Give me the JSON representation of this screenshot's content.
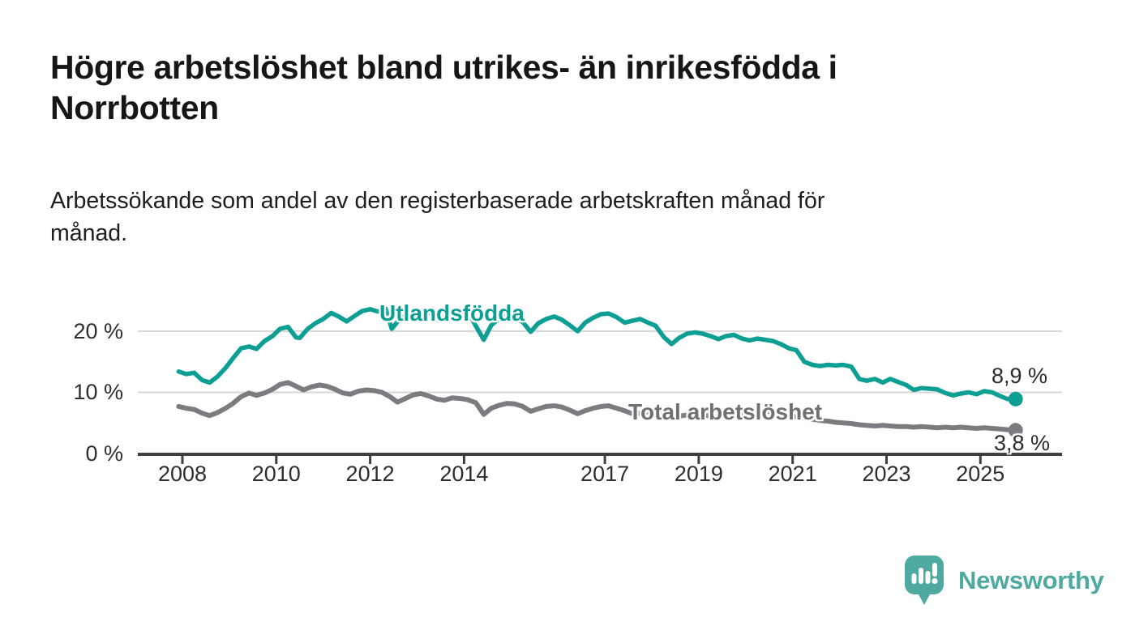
{
  "header": {
    "title": "Högre arbetslöshet bland utrikes- än inrikesfödda i Norrbotten",
    "title_lines": [
      "Högre arbetslöshet bland utrikes- än inrikesfödda i",
      "Norrbotten"
    ],
    "subtitle": "Arbetssökande som andel av den registerbaserade arbetskraften månad för månad.",
    "subtitle_lines": [
      "Arbetssökande som andel av den registerbaserade arbetskraften månad för",
      "månad."
    ]
  },
  "colors": {
    "teal": "#0d9f94",
    "gray": "#7b7b80",
    "grid": "#d7d7d7",
    "axis": "#3f3f3f",
    "logo_teal": "#4ea9a0"
  },
  "chart_data": {
    "type": "line",
    "title": "Högre arbetslöshet bland utrikes- än inrikesfödda i Norrbotten",
    "subtitle": "Arbetssökande som andel av den registerbaserade arbetskraften månad för månad.",
    "x_unit": "year (monthly observations)",
    "xlim": [
      2007.9,
      2026.5
    ],
    "ylim": [
      0,
      25
    ],
    "grid": "horizontal only",
    "legend_position": "inline labels at line",
    "grid_values": [
      10,
      20
    ],
    "y_ticks": [
      {
        "label": "0 %",
        "value": 0
      },
      {
        "label": "10 %",
        "value": 10
      },
      {
        "label": "20 %",
        "value": 20
      }
    ],
    "x_ticks": [
      {
        "label": "2008",
        "value": 2008
      },
      {
        "label": "2010",
        "value": 2010
      },
      {
        "label": "2012",
        "value": 2012
      },
      {
        "label": "2014",
        "value": 2014
      },
      {
        "label": "2017",
        "value": 2017
      },
      {
        "label": "2019",
        "value": 2019
      },
      {
        "label": "2021",
        "value": 2021
      },
      {
        "label": "2023",
        "value": 2023
      },
      {
        "label": "2025",
        "value": 2025
      }
    ],
    "series": [
      {
        "name": "Utlandsfödda",
        "color": "#0d9f94",
        "end_label": "8,9 %",
        "end_value": 8.9,
        "points": [
          [
            2007.92,
            13.4
          ],
          [
            2008.08,
            13.0
          ],
          [
            2008.25,
            13.2
          ],
          [
            2008.42,
            12.0
          ],
          [
            2008.58,
            11.6
          ],
          [
            2008.75,
            12.6
          ],
          [
            2008.92,
            14.0
          ],
          [
            2009.08,
            15.6
          ],
          [
            2009.25,
            17.2
          ],
          [
            2009.42,
            17.5
          ],
          [
            2009.58,
            17.1
          ],
          [
            2009.75,
            18.4
          ],
          [
            2009.92,
            19.2
          ],
          [
            2010.08,
            20.4
          ],
          [
            2010.25,
            20.7
          ],
          [
            2010.42,
            19.0
          ],
          [
            2010.5,
            18.9
          ],
          [
            2010.67,
            20.4
          ],
          [
            2010.83,
            21.3
          ],
          [
            2011.0,
            22.0
          ],
          [
            2011.17,
            23.0
          ],
          [
            2011.33,
            22.4
          ],
          [
            2011.5,
            21.6
          ],
          [
            2011.67,
            22.5
          ],
          [
            2011.83,
            23.3
          ],
          [
            2012.0,
            23.6
          ],
          [
            2012.17,
            23.2
          ],
          [
            2012.33,
            23.7
          ],
          [
            2012.46,
            20.4
          ],
          [
            2012.63,
            22.0
          ],
          [
            2012.79,
            22.7
          ],
          [
            2012.96,
            23.0
          ],
          [
            2013.13,
            23.4
          ],
          [
            2013.29,
            22.9
          ],
          [
            2013.46,
            21.8
          ],
          [
            2013.63,
            22.5
          ],
          [
            2013.79,
            23.0
          ],
          [
            2013.96,
            23.3
          ],
          [
            2014.13,
            22.5
          ],
          [
            2014.42,
            18.6
          ],
          [
            2014.58,
            21.0
          ],
          [
            2014.75,
            22.1
          ],
          [
            2014.92,
            22.4
          ],
          [
            2015.08,
            22.2
          ],
          [
            2015.25,
            21.5
          ],
          [
            2015.42,
            19.9
          ],
          [
            2015.58,
            21.3
          ],
          [
            2015.75,
            22.0
          ],
          [
            2015.92,
            22.4
          ],
          [
            2016.08,
            21.9
          ],
          [
            2016.25,
            21.0
          ],
          [
            2016.42,
            20.0
          ],
          [
            2016.58,
            21.4
          ],
          [
            2016.75,
            22.2
          ],
          [
            2016.92,
            22.8
          ],
          [
            2017.08,
            22.9
          ],
          [
            2017.25,
            22.3
          ],
          [
            2017.42,
            21.4
          ],
          [
            2017.58,
            21.7
          ],
          [
            2017.75,
            22.0
          ],
          [
            2017.92,
            21.4
          ],
          [
            2018.08,
            20.9
          ],
          [
            2018.25,
            19.1
          ],
          [
            2018.42,
            17.9
          ],
          [
            2018.58,
            18.9
          ],
          [
            2018.75,
            19.6
          ],
          [
            2018.92,
            19.8
          ],
          [
            2019.08,
            19.6
          ],
          [
            2019.25,
            19.2
          ],
          [
            2019.42,
            18.7
          ],
          [
            2019.58,
            19.2
          ],
          [
            2019.75,
            19.4
          ],
          [
            2019.92,
            18.8
          ],
          [
            2020.08,
            18.5
          ],
          [
            2020.25,
            18.8
          ],
          [
            2020.42,
            18.6
          ],
          [
            2020.58,
            18.4
          ],
          [
            2020.75,
            17.9
          ],
          [
            2020.92,
            17.2
          ],
          [
            2021.08,
            16.9
          ],
          [
            2021.25,
            15.0
          ],
          [
            2021.42,
            14.5
          ],
          [
            2021.58,
            14.3
          ],
          [
            2021.75,
            14.5
          ],
          [
            2021.92,
            14.4
          ],
          [
            2022.08,
            14.5
          ],
          [
            2022.25,
            14.2
          ],
          [
            2022.42,
            12.2
          ],
          [
            2022.58,
            11.9
          ],
          [
            2022.75,
            12.2
          ],
          [
            2022.92,
            11.6
          ],
          [
            2023.08,
            12.2
          ],
          [
            2023.25,
            11.7
          ],
          [
            2023.42,
            11.2
          ],
          [
            2023.58,
            10.4
          ],
          [
            2023.75,
            10.7
          ],
          [
            2023.92,
            10.6
          ],
          [
            2024.08,
            10.5
          ],
          [
            2024.25,
            9.9
          ],
          [
            2024.42,
            9.5
          ],
          [
            2024.58,
            9.8
          ],
          [
            2024.75,
            10.0
          ],
          [
            2024.92,
            9.7
          ],
          [
            2025.08,
            10.2
          ],
          [
            2025.25,
            10.0
          ],
          [
            2025.42,
            9.4
          ],
          [
            2025.58,
            8.9
          ],
          [
            2025.75,
            8.9
          ]
        ]
      },
      {
        "name": "Total arbetslöshet",
        "color": "#7b7b80",
        "end_label": "3,8 %",
        "end_value": 3.8,
        "points": [
          [
            2007.92,
            7.7
          ],
          [
            2008.08,
            7.4
          ],
          [
            2008.25,
            7.2
          ],
          [
            2008.42,
            6.6
          ],
          [
            2008.58,
            6.2
          ],
          [
            2008.75,
            6.7
          ],
          [
            2008.92,
            7.4
          ],
          [
            2009.08,
            8.2
          ],
          [
            2009.25,
            9.3
          ],
          [
            2009.42,
            9.9
          ],
          [
            2009.58,
            9.5
          ],
          [
            2009.75,
            9.9
          ],
          [
            2009.92,
            10.5
          ],
          [
            2010.08,
            11.3
          ],
          [
            2010.25,
            11.6
          ],
          [
            2010.42,
            11.0
          ],
          [
            2010.58,
            10.4
          ],
          [
            2010.75,
            10.9
          ],
          [
            2010.92,
            11.2
          ],
          [
            2011.08,
            11.0
          ],
          [
            2011.25,
            10.5
          ],
          [
            2011.42,
            9.9
          ],
          [
            2011.58,
            9.7
          ],
          [
            2011.75,
            10.2
          ],
          [
            2011.92,
            10.4
          ],
          [
            2012.08,
            10.3
          ],
          [
            2012.25,
            10.0
          ],
          [
            2012.42,
            9.3
          ],
          [
            2012.58,
            8.4
          ],
          [
            2012.75,
            9.0
          ],
          [
            2012.92,
            9.6
          ],
          [
            2013.08,
            9.8
          ],
          [
            2013.25,
            9.4
          ],
          [
            2013.42,
            8.9
          ],
          [
            2013.58,
            8.7
          ],
          [
            2013.75,
            9.1
          ],
          [
            2013.92,
            9.0
          ],
          [
            2014.08,
            8.8
          ],
          [
            2014.25,
            8.3
          ],
          [
            2014.42,
            6.4
          ],
          [
            2014.58,
            7.4
          ],
          [
            2014.75,
            7.9
          ],
          [
            2014.92,
            8.2
          ],
          [
            2015.08,
            8.1
          ],
          [
            2015.25,
            7.7
          ],
          [
            2015.42,
            6.9
          ],
          [
            2015.58,
            7.3
          ],
          [
            2015.75,
            7.7
          ],
          [
            2015.92,
            7.8
          ],
          [
            2016.08,
            7.6
          ],
          [
            2016.25,
            7.1
          ],
          [
            2016.42,
            6.5
          ],
          [
            2016.58,
            7.0
          ],
          [
            2016.75,
            7.4
          ],
          [
            2016.92,
            7.7
          ],
          [
            2017.08,
            7.8
          ],
          [
            2017.25,
            7.4
          ],
          [
            2017.42,
            7.0
          ],
          [
            2017.58,
            6.5
          ],
          [
            2017.75,
            6.6
          ],
          [
            2017.92,
            6.8
          ],
          [
            2018.08,
            6.7
          ],
          [
            2018.25,
            6.3
          ],
          [
            2018.42,
            5.9
          ],
          [
            2018.58,
            6.1
          ],
          [
            2018.75,
            6.3
          ],
          [
            2018.92,
            6.4
          ],
          [
            2019.08,
            6.3
          ],
          [
            2019.25,
            6.1
          ],
          [
            2019.42,
            5.9
          ],
          [
            2019.58,
            6.1
          ],
          [
            2019.75,
            6.3
          ],
          [
            2019.92,
            6.3
          ],
          [
            2020.08,
            6.4
          ],
          [
            2020.25,
            6.7
          ],
          [
            2020.42,
            6.9
          ],
          [
            2020.58,
            6.8
          ],
          [
            2020.75,
            6.5
          ],
          [
            2020.92,
            6.2
          ],
          [
            2021.08,
            6.0
          ],
          [
            2021.25,
            5.8
          ],
          [
            2021.42,
            5.6
          ],
          [
            2021.58,
            5.4
          ],
          [
            2021.75,
            5.3
          ],
          [
            2021.92,
            5.1
          ],
          [
            2022.08,
            5.0
          ],
          [
            2022.25,
            4.9
          ],
          [
            2022.42,
            4.7
          ],
          [
            2022.58,
            4.6
          ],
          [
            2022.75,
            4.5
          ],
          [
            2022.92,
            4.6
          ],
          [
            2023.08,
            4.5
          ],
          [
            2023.25,
            4.4
          ],
          [
            2023.42,
            4.4
          ],
          [
            2023.58,
            4.3
          ],
          [
            2023.75,
            4.4
          ],
          [
            2023.92,
            4.3
          ],
          [
            2024.08,
            4.2
          ],
          [
            2024.25,
            4.3
          ],
          [
            2024.42,
            4.2
          ],
          [
            2024.58,
            4.3
          ],
          [
            2024.75,
            4.2
          ],
          [
            2024.92,
            4.1
          ],
          [
            2025.08,
            4.2
          ],
          [
            2025.25,
            4.1
          ],
          [
            2025.42,
            4.0
          ],
          [
            2025.58,
            3.9
          ],
          [
            2025.75,
            3.8
          ]
        ]
      }
    ]
  },
  "branding": {
    "wordmark": "Newsworthy",
    "logo_icon": "speech-bubble-with-bar-chart-and-exclamation"
  }
}
